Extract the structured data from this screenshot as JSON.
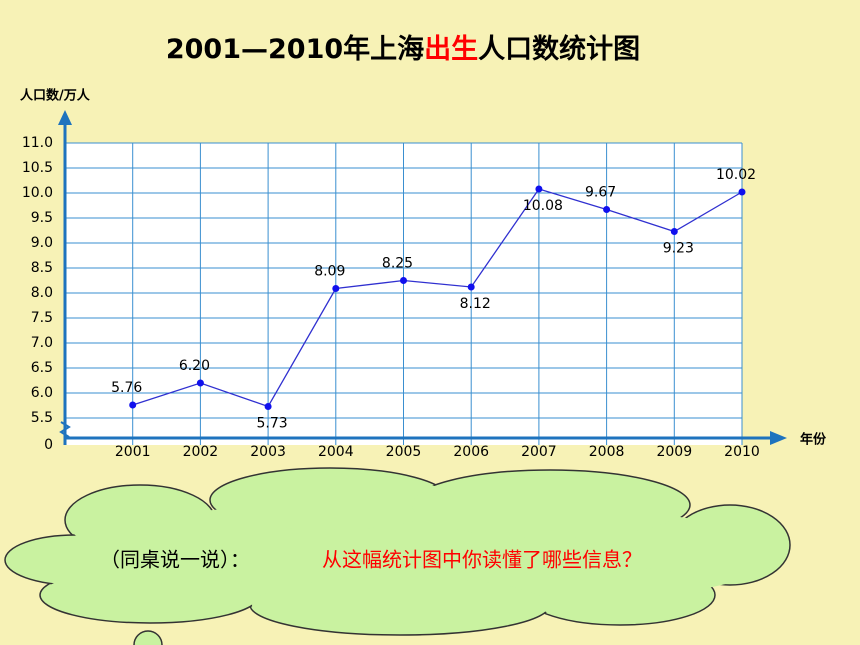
{
  "chart_data": {
    "type": "line",
    "title": [
      "2001—2010年上海",
      "出生",
      "人口数统计图"
    ],
    "title_colors": [
      "#000000",
      "#ff0000",
      "#000000"
    ],
    "y_label": "人口数/万人",
    "x_label": "年份",
    "categories": [
      "2001",
      "2002",
      "2003",
      "2004",
      "2005",
      "2006",
      "2007",
      "2008",
      "2009",
      "2010"
    ],
    "values": [
      5.76,
      6.2,
      5.73,
      8.09,
      8.25,
      8.12,
      10.08,
      9.67,
      9.23,
      10.02
    ],
    "value_labels": [
      "5.76",
      "6.20",
      "5.73",
      "8.09",
      "8.25",
      "8.12",
      "10.08",
      "9.67",
      "9.23",
      "10.02"
    ],
    "color": "#3030d0",
    "ylim": [
      5.5,
      11
    ],
    "yticks": [
      0,
      5.5,
      {
        "value": 6,
        "label": "6.0"
      },
      6.5,
      {
        "value": 7,
        "label": "7.0"
      },
      7.5,
      {
        "value": 8,
        "label": "8.0"
      },
      8.5,
      {
        "value": 9,
        "label": "9.0"
      },
      9.5,
      {
        "value": 10,
        "label": "10.0"
      },
      10.5,
      {
        "value": 11,
        "label": "11.0"
      }
    ],
    "y_axis_break": true,
    "grid": true
  },
  "callout": {
    "prompt": "（同桌说一说）：",
    "question": "从这幅统计图中你读懂了哪些信息？"
  }
}
